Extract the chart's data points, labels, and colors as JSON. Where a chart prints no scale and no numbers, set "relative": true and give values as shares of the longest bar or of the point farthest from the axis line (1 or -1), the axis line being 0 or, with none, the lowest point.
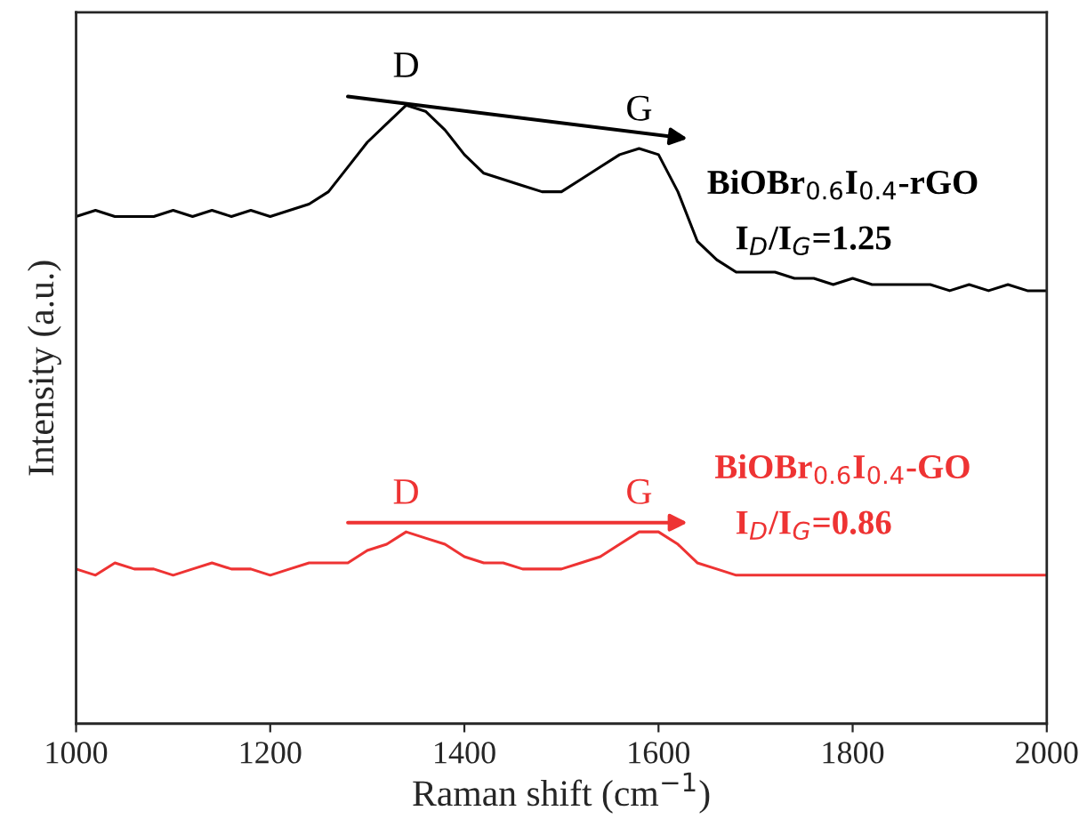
{
  "chart_data": {
    "type": "line",
    "relative": true,
    "xlabel": "Raman shift (cm$^{−1}$)",
    "ylabel": "Intensity (a.u.)",
    "xlim": [
      1000,
      2000
    ],
    "xticks": [
      1000,
      1200,
      1400,
      1600,
      1800,
      2000
    ],
    "tick_labels": "x",
    "grid": false,
    "legend": false,
    "x": [
      1000,
      1020,
      1040,
      1060,
      1080,
      1100,
      1120,
      1140,
      1160,
      1180,
      1200,
      1220,
      1240,
      1260,
      1280,
      1300,
      1320,
      1340,
      1360,
      1380,
      1400,
      1420,
      1440,
      1460,
      1480,
      1500,
      1520,
      1540,
      1560,
      1580,
      1600,
      1620,
      1640,
      1660,
      1680,
      1700,
      1720,
      1740,
      1760,
      1780,
      1800,
      1820,
      1840,
      1860,
      1880,
      1900,
      1920,
      1940,
      1960,
      1980,
      2000
    ],
    "series": [
      {
        "color": "#000000",
        "values": [
          0.82,
          0.83,
          0.82,
          0.82,
          0.82,
          0.83,
          0.82,
          0.83,
          0.82,
          0.83,
          0.82,
          0.83,
          0.84,
          0.86,
          0.9,
          0.94,
          0.97,
          1.0,
          0.99,
          0.96,
          0.92,
          0.89,
          0.88,
          0.87,
          0.86,
          0.86,
          0.88,
          0.9,
          0.92,
          0.93,
          0.92,
          0.86,
          0.78,
          0.75,
          0.73,
          0.73,
          0.73,
          0.72,
          0.72,
          0.71,
          0.72,
          0.71,
          0.71,
          0.71,
          0.71,
          0.7,
          0.71,
          0.7,
          0.71,
          0.7,
          0.7
        ]
      },
      {
        "color": "#ee3333",
        "values": [
          0.25,
          0.24,
          0.26,
          0.25,
          0.25,
          0.24,
          0.25,
          0.26,
          0.25,
          0.25,
          0.24,
          0.25,
          0.26,
          0.26,
          0.26,
          0.28,
          0.29,
          0.31,
          0.3,
          0.29,
          0.27,
          0.26,
          0.26,
          0.25,
          0.25,
          0.25,
          0.26,
          0.27,
          0.29,
          0.31,
          0.31,
          0.29,
          0.26,
          0.25,
          0.24,
          0.24,
          0.24,
          0.24,
          0.24,
          0.24,
          0.24,
          0.24,
          0.24,
          0.24,
          0.24,
          0.24,
          0.24,
          0.24,
          0.24,
          0.24,
          0.24
        ]
      }
    ],
    "annotations": [
      "D",
      "G",
      "BiOBr$_{0.6}$I$_{0.4}$-rGO",
      "I$_{D}$/I$_{G}$=1.25",
      "D",
      "G",
      "BiOBr$_{0.6}$I$_{0.4}$-GO",
      "I$_{D}$/I$_{G}$=0.86"
    ]
  }
}
